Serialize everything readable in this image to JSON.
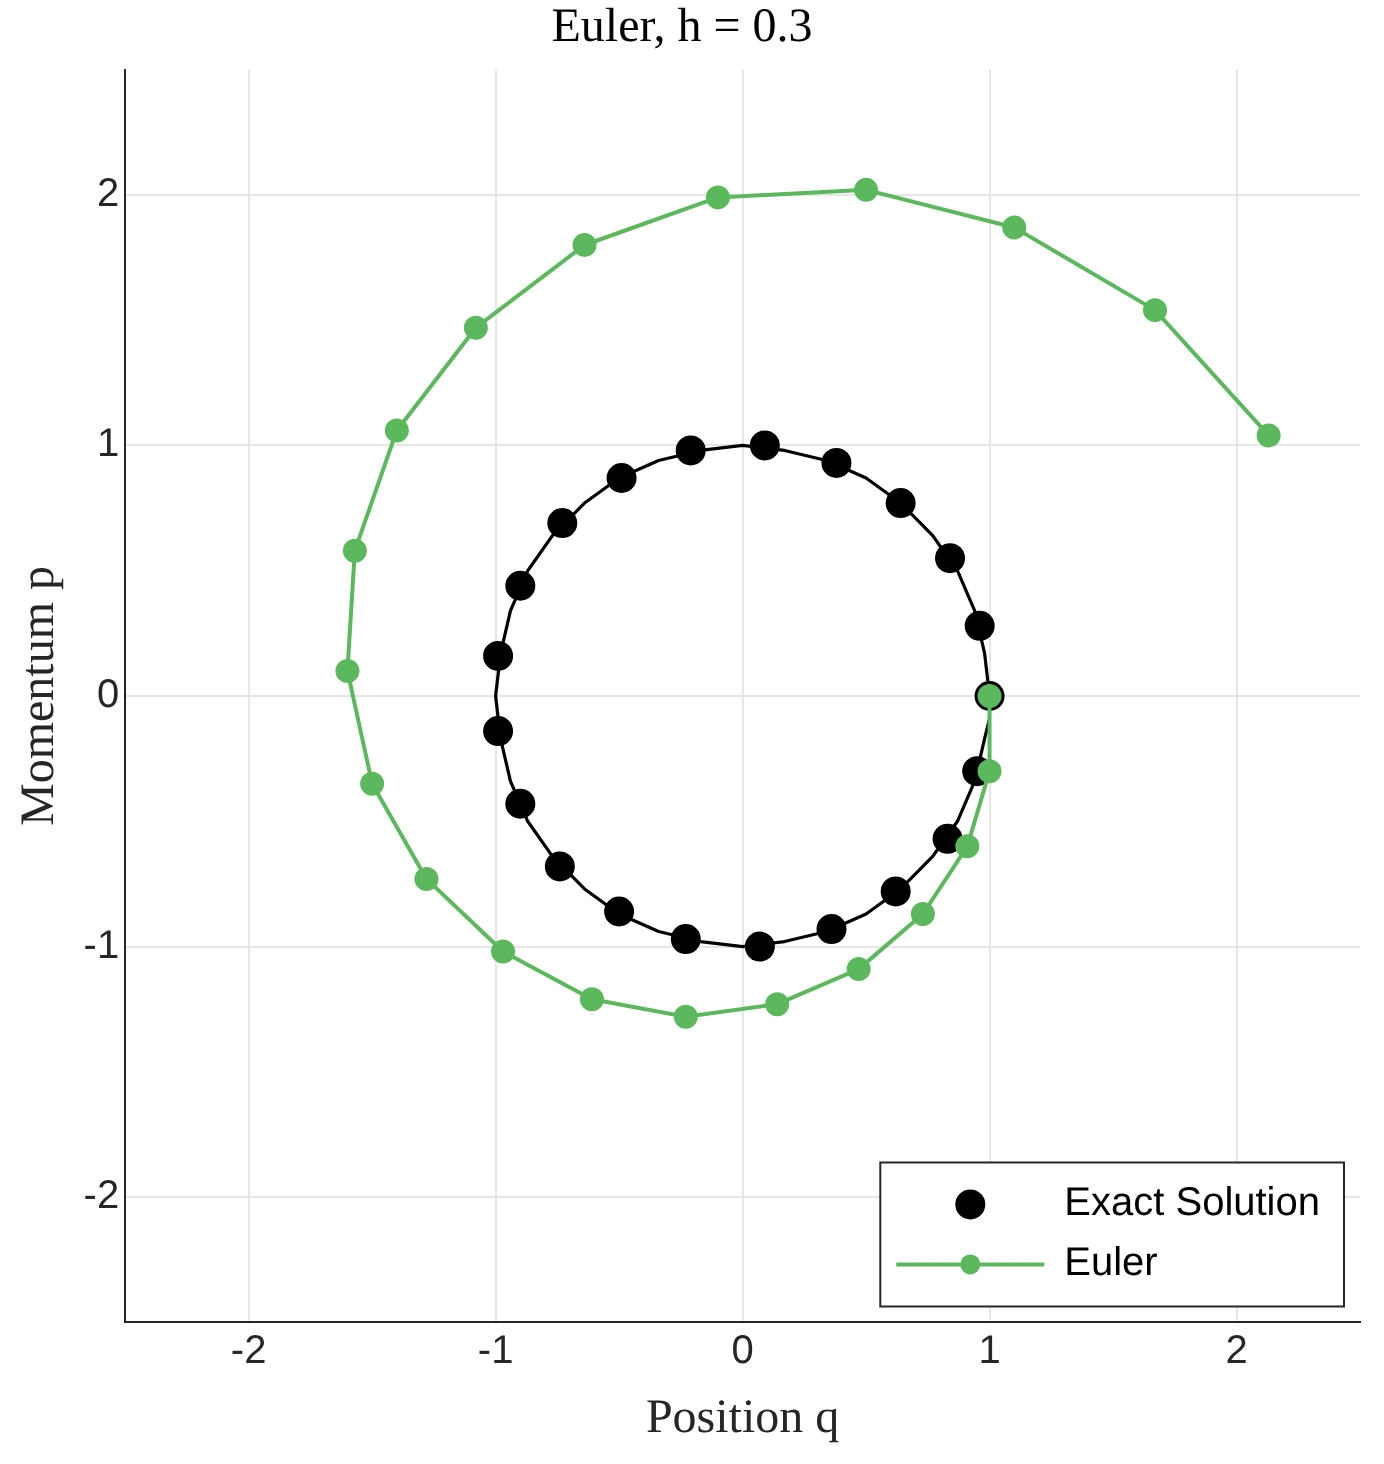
{
  "chart_data": {
    "type": "line",
    "title": "Euler, h = 0.3",
    "xlabel": "Position q",
    "ylabel": "Momentum p",
    "xlim": [
      -2.5,
      2.5
    ],
    "ylim": [
      -2.5,
      2.5
    ],
    "xticks": [
      -2,
      -1,
      0,
      1,
      2
    ],
    "yticks": [
      -2,
      -1,
      0,
      1,
      2
    ],
    "grid": true,
    "legend": "bottom right",
    "series": [
      {
        "type": "line",
        "marker": "none",
        "color": "#000000",
        "x": [
          1,
          0.98,
          0.94,
          0.87,
          0.77,
          0.64,
          0.5,
          0.34,
          0.17,
          0,
          -0.17,
          -0.34,
          -0.5,
          -0.64,
          -0.77,
          -0.87,
          -0.94,
          -0.98,
          -1,
          -0.98,
          -0.94,
          -0.87,
          -0.77,
          -0.64,
          -0.5,
          -0.34,
          -0.17,
          0,
          0.17,
          0.34,
          0.5,
          0.64,
          0.77,
          0.87,
          0.94,
          0.98,
          1
        ],
        "values": [
          0,
          0.17,
          0.34,
          0.5,
          0.64,
          0.77,
          0.87,
          0.94,
          0.98,
          1,
          0.98,
          0.94,
          0.87,
          0.77,
          0.64,
          0.5,
          0.34,
          0.17,
          0,
          -0.17,
          -0.34,
          -0.5,
          -0.64,
          -0.77,
          -0.87,
          -0.94,
          -0.98,
          -1,
          -0.98,
          -0.94,
          -0.87,
          -0.77,
          -0.64,
          -0.5,
          -0.34,
          -0.17,
          -0.09
        ]
      },
      {
        "type": "scatter",
        "name": "Exact Solution",
        "marker": "circle",
        "color": "#000000",
        "x": [
          1,
          0.95,
          0.83,
          0.62,
          0.36,
          0.07,
          -0.23,
          -0.5,
          -0.74,
          -0.9,
          -0.99,
          -0.99,
          -0.9,
          -0.73,
          -0.49,
          -0.21,
          0.09,
          0.38,
          0.64,
          0.84,
          0.96
        ],
        "values": [
          0,
          -0.3,
          -0.57,
          -0.78,
          -0.93,
          -1,
          -0.97,
          -0.86,
          -0.68,
          -0.43,
          -0.14,
          0.16,
          0.44,
          0.69,
          0.87,
          0.98,
          1,
          0.93,
          0.77,
          0.55,
          0.28
        ]
      },
      {
        "type": "line",
        "name": "Euler",
        "marker": "circle",
        "color": "#5cb85c",
        "x": [
          1,
          1,
          0.91,
          0.73,
          0.47,
          0.14,
          -0.23,
          -0.61,
          -0.97,
          -1.28,
          -1.5,
          -1.6,
          -1.57,
          -1.4,
          -1.08,
          -0.64,
          -0.1,
          0.5,
          1.1,
          1.67,
          2.13
        ],
        "values": [
          0,
          -0.3,
          -0.6,
          -0.87,
          -1.09,
          -1.23,
          -1.28,
          -1.21,
          -1.02,
          -0.73,
          -0.35,
          0.1,
          0.58,
          1.06,
          1.47,
          1.8,
          1.99,
          2.02,
          1.87,
          1.54,
          1.04
        ]
      }
    ]
  }
}
